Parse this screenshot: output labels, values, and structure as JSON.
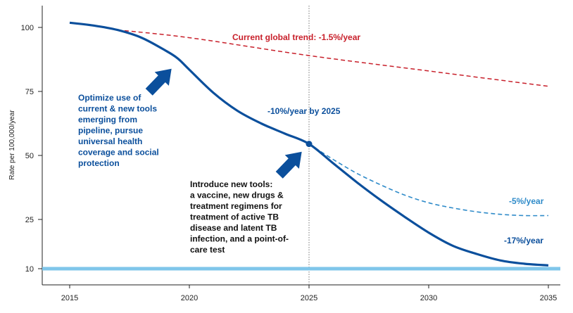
{
  "chart_data": {
    "type": "line",
    "ylabel": "Rate per 100,000/year",
    "xlabel": "",
    "xlim": [
      2013.8,
      2035.5
    ],
    "x_ticks": [
      2015,
      2020,
      2025,
      2030,
      2035
    ],
    "y_ticks": [
      10,
      25,
      50,
      75,
      100
    ],
    "grid": false,
    "vline_x": 2025,
    "target_level": 10,
    "series": [
      {
        "key": "trend",
        "style": "dashed",
        "color": "#c8202b",
        "x": [
          2017,
          2020,
          2025,
          2030,
          2035
        ],
        "y": [
          99,
          96,
          89,
          83,
          77
        ]
      },
      {
        "key": "main",
        "style": "solid",
        "color": "#0b4f9c",
        "x": [
          2015,
          2016,
          2017,
          2018,
          2019,
          2019.5,
          2020,
          2021,
          2022,
          2023,
          2024,
          2025,
          2026,
          2027,
          2028,
          2029,
          2030,
          2031,
          2032,
          2033,
          2034,
          2035
        ],
        "y": [
          102.5,
          101,
          99,
          96,
          91,
          88,
          83.5,
          74.5,
          67.5,
          62.5,
          58.5,
          54.5,
          47,
          39.5,
          32.5,
          26,
          21,
          17,
          14.5,
          12.5,
          11.5,
          11
        ]
      },
      {
        "key": "alt5",
        "style": "dashed",
        "color": "#2f8bc9",
        "x": [
          2025,
          2026,
          2027,
          2028,
          2029,
          2030,
          2031,
          2032,
          2033,
          2034,
          2035
        ],
        "y": [
          54.5,
          48.5,
          43,
          38.5,
          34.5,
          31.5,
          29.5,
          28,
          27,
          26.5,
          26.5
        ]
      }
    ],
    "point": {
      "x": 2025,
      "y": 54.5
    },
    "annotations": {
      "trend": "Current global trend:  -1.5%/year",
      "ten_pct": "-10%/year by 2025",
      "five_pct": "-5%/year",
      "seventeen_pct": "-17%/year",
      "optimize": [
        "Optimize use of",
        "current & new tools",
        "emerging from",
        "pipeline, pursue",
        "universal health",
        "coverage and social",
        "protection"
      ],
      "introduce": [
        "Introduce new tools:",
        "a vaccine, new drugs &",
        "treatment regimens for",
        "treatment of active TB",
        "disease and latent TB",
        "infection, and a point-of-",
        "care test"
      ]
    },
    "colors": {
      "main": "#0b4f9c",
      "trend": "#c8202b",
      "alt": "#2f8bc9",
      "target": "#7fc6ea",
      "axis": "#222222"
    }
  }
}
